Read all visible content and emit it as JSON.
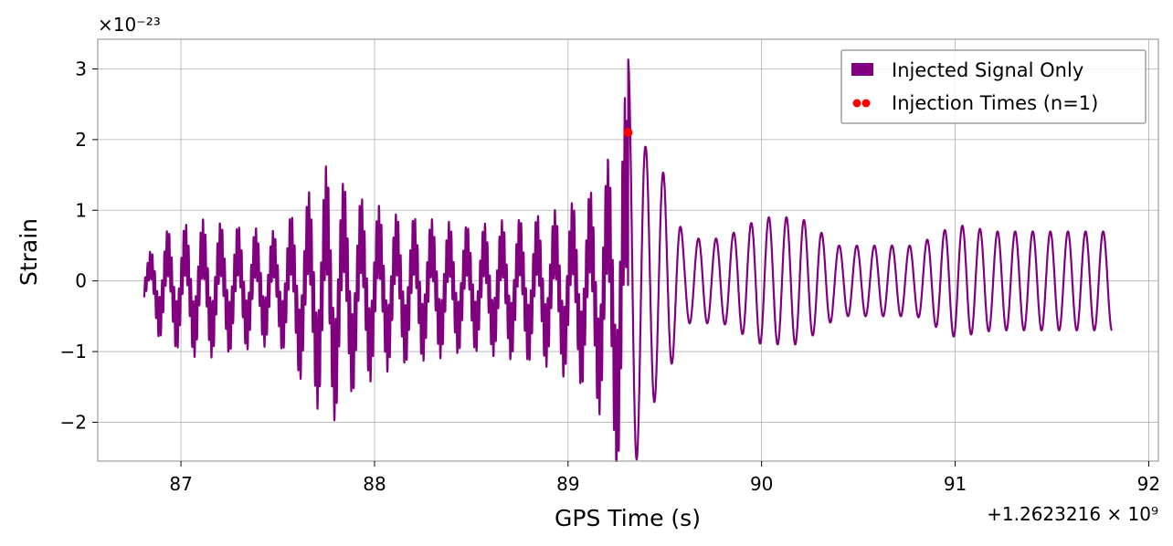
{
  "chart_data": {
    "type": "line",
    "title": "",
    "xlabel": "GPS Time (s)",
    "ylabel": "Strain",
    "x_offset_text": "+1.2623216 × 10⁹",
    "y_exponent_text": "×10⁻²³",
    "xlim": [
      86.57,
      92.05
    ],
    "ylim": [
      -2.55,
      3.42
    ],
    "x_ticks": [
      87,
      88,
      89,
      90,
      91,
      92
    ],
    "x_tick_labels": [
      "87",
      "88",
      "89",
      "90",
      "91",
      "92"
    ],
    "y_ticks": [
      -2,
      -1,
      0,
      1,
      2,
      3
    ],
    "y_tick_labels": [
      "−2",
      "−1",
      "0",
      "1",
      "2",
      "3"
    ],
    "grid": true,
    "legend_position": "top-right",
    "series": [
      {
        "name": "Injected Signal Only",
        "color": "#800080",
        "style": "line",
        "t_start": 86.81,
        "t_end": 91.81,
        "dense_segment": [
          86.81,
          89.31
        ],
        "peak": {
          "x": 89.31,
          "y": 3.15
        },
        "min": {
          "x": 89.27,
          "y": -2.25
        },
        "envelope_x": [
          86.81,
          86.9,
          87.1,
          87.3,
          87.5,
          87.7,
          87.76,
          87.9,
          88.1,
          88.3,
          88.5,
          88.7,
          88.9,
          89.1,
          89.2,
          89.27,
          89.31,
          89.4,
          89.5,
          89.6,
          89.8,
          90.0,
          90.2,
          90.4,
          90.6,
          90.8,
          91.0,
          91.2,
          91.4,
          91.6,
          91.81
        ],
        "envelope_y": [
          0.3,
          0.8,
          1.0,
          0.9,
          0.8,
          1.6,
          1.9,
          1.4,
          1.1,
          1.0,
          0.9,
          1.0,
          1.1,
          1.4,
          1.9,
          2.7,
          3.15,
          1.9,
          1.5,
          0.6,
          0.6,
          0.9,
          0.9,
          0.5,
          0.5,
          0.5,
          0.8,
          0.7,
          0.7,
          0.7,
          0.7
        ],
        "oscillation_frequency_hz": 11
      },
      {
        "name": "Injection Times (n=1)",
        "color": "#ff0000",
        "style": "marker",
        "points": [
          {
            "x": 89.31,
            "y": 2.1
          }
        ]
      }
    ]
  }
}
